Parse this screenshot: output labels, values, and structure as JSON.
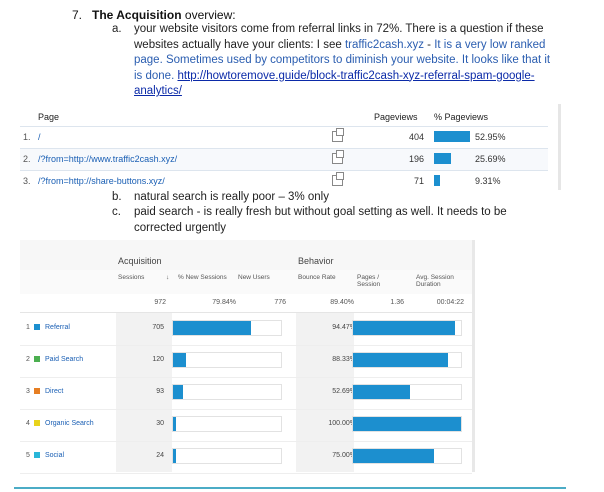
{
  "heading": {
    "number": "7.",
    "title": "The Acquisition",
    "rest": " overview:"
  },
  "item_a": {
    "label": "a.",
    "text1": "your website visitors come from referral links in 72%. There is a question if these websites actually have your clients: I see ",
    "domain": "traffic2cash.xyz",
    "text2": " - ",
    "note": "It is a very low ranked page. Sometimes used by competitors to diminish your website. It looks like that it is done.",
    "space": " ",
    "url": "http://howtoremove.guide/block-traffic2cash-xyz-referral-spam-google-analytics/"
  },
  "pages_table": {
    "header": {
      "page": "Page",
      "pageviews": "Pageviews",
      "pct": "% Pageviews"
    },
    "rows": [
      {
        "idx": "1.",
        "page": "/",
        "pageviews": "404",
        "pct": "52.95%",
        "share": 0.5295
      },
      {
        "idx": "2.",
        "page": "/?from=http://www.traffic2cash.xyz/",
        "pageviews": "196",
        "pct": "25.69%",
        "share": 0.2569
      },
      {
        "idx": "3.",
        "page": "/?from=http://share-buttons.xyz/",
        "pageviews": "71",
        "pct": "9.31%",
        "share": 0.0931
      }
    ],
    "icon": "copy-icon"
  },
  "item_b": {
    "label": "b.",
    "text": "natural search is really poor – 3% only"
  },
  "item_c": {
    "label": "c.",
    "text": "paid search -  is really fresh but without goal setting as well. It needs to be corrected urgently"
  },
  "acq_table": {
    "groups": {
      "acquisition": "Acquisition",
      "behavior": "Behavior"
    },
    "columns": {
      "sessions": "Sessions",
      "sort": "↓",
      "new_sessions": "% New Sessions",
      "new_users": "New Users",
      "bounce_rate": "Bounce Rate",
      "pages_session": "Pages / Session",
      "avg_duration": "Avg. Session Duration"
    },
    "totals": {
      "sessions": "972",
      "new_sessions": "79.84%",
      "new_users": "776",
      "bounce_rate": "89.40%",
      "pages_session": "1.36",
      "avg_duration": "00:04:22"
    },
    "rows": [
      {
        "rank": "1",
        "channel": "Referral",
        "color": "#1c8fcf",
        "sessions": "705",
        "sessions_share": 0.7253,
        "bounce": "94.47%",
        "bounce_share": 0.9447
      },
      {
        "rank": "2",
        "channel": "Paid Search",
        "color": "#4caf50",
        "sessions": "120",
        "sessions_share": 0.1235,
        "bounce": "88.33%",
        "bounce_share": 0.8833
      },
      {
        "rank": "3",
        "channel": "Direct",
        "color": "#e67e22",
        "sessions": "93",
        "sessions_share": 0.0957,
        "bounce": "52.69%",
        "bounce_share": 0.5269
      },
      {
        "rank": "4",
        "channel": "Organic Search",
        "color": "#e8d31c",
        "sessions": "30",
        "sessions_share": 0.0309,
        "bounce": "100.00%",
        "bounce_share": 1.0
      },
      {
        "rank": "5",
        "channel": "Social",
        "color": "#29b6d8",
        "sessions": "24",
        "sessions_share": 0.0247,
        "bounce": "75.00%",
        "bounce_share": 0.75
      }
    ]
  },
  "colors": {
    "bar": "#1c8fcf",
    "link": "#0b2aa8",
    "accent_line": "#4bacc6"
  }
}
